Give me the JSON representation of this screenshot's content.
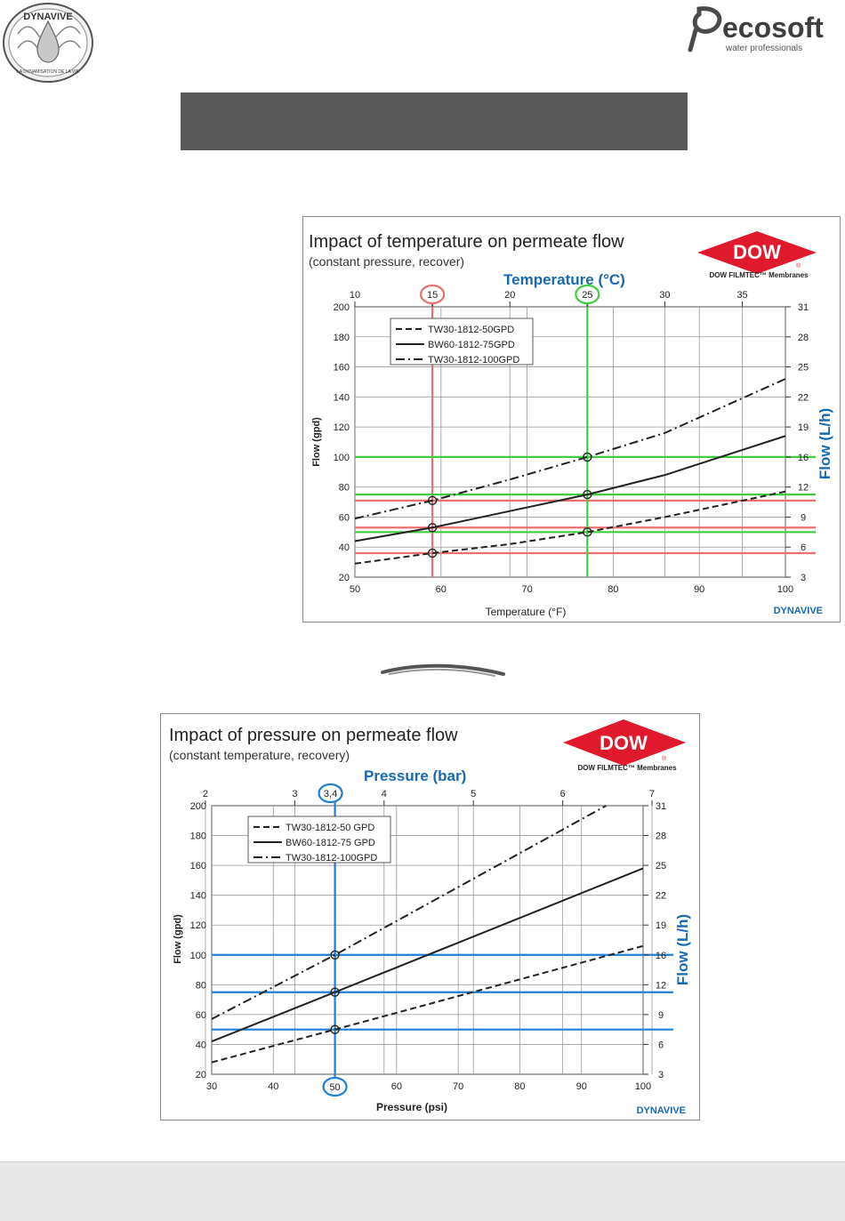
{
  "header": {
    "left_logo": {
      "top_text": "DYNAVIVE",
      "bottom_text": "LA DYNAMISATION DE LA VIE"
    },
    "right_logo": {
      "name": "ecosoft",
      "tagline": "water professionals",
      "icon": "leaf-e-icon"
    }
  },
  "colors": {
    "red_guides": "#e9706f",
    "green_guides": "#3fce3f",
    "blue_guides": "#1f7fd6",
    "blue_text": "#1769b3",
    "dow_red": "#e0192d",
    "banner": "#595959",
    "footer": "#e8e8e8"
  },
  "chart_data": [
    {
      "type": "line",
      "title": "Impact of temperature on permeate flow",
      "subtitle": "(constant pressure, recover)",
      "brand": {
        "name": "DOW",
        "sub": "DOW FILMTEC™ Membranes",
        "reg": "®"
      },
      "watermark": "DYNAVIVE",
      "top_axis": {
        "label": "Temperature (°C)",
        "ticks": [
          "10",
          "15",
          "20",
          "25",
          "30",
          "35"
        ],
        "range": [
          10,
          37.78
        ]
      },
      "xlabel": "Temperature (°F)",
      "xlim": [
        50,
        100
      ],
      "xticks": [
        "50",
        "60",
        "70",
        "80",
        "90",
        "100"
      ],
      "ylabel": "Flow (gpd)",
      "ylim": [
        20,
        200
      ],
      "yticks": [
        "20",
        "40",
        "60",
        "80",
        "100",
        "120",
        "140",
        "160",
        "180",
        "200"
      ],
      "right_axis": {
        "label": "Flow (L/h)",
        "ticks": [
          "3",
          "6",
          "9",
          "12",
          "16",
          "19",
          "22",
          "25",
          "28",
          "31"
        ]
      },
      "grid": true,
      "legend_position": "top-left",
      "series": [
        {
          "name": "TW30-1812-50GPD",
          "dash": "dashed",
          "x": [
            50,
            59,
            68,
            77,
            86,
            100
          ],
          "values": [
            29,
            36,
            42,
            50,
            60,
            77
          ]
        },
        {
          "name": "BW60-1812-75GPD",
          "dash": "solid",
          "x": [
            50,
            59,
            68,
            77,
            86,
            100
          ],
          "values": [
            44,
            53,
            64,
            75,
            88,
            114
          ]
        },
        {
          "name": "TW30-1812-100GPD",
          "dash": "dashdot",
          "x": [
            50,
            59,
            68,
            77,
            86,
            100
          ],
          "values": [
            59,
            71,
            85,
            100,
            116,
            152
          ]
        }
      ],
      "markers": [
        {
          "x": 59,
          "y": 71
        },
        {
          "x": 59,
          "y": 53
        },
        {
          "x": 59,
          "y": 36
        },
        {
          "x": 77,
          "y": 100
        },
        {
          "x": 77,
          "y": 75
        },
        {
          "x": 77,
          "y": 50
        }
      ],
      "highlight_ticks": [
        {
          "label": "15",
          "color": "red"
        },
        {
          "label": "25",
          "color": "green"
        }
      ]
    },
    {
      "type": "line",
      "title": "Impact of pressure on permeate flow",
      "subtitle": "(constant temperature, recovery)",
      "brand": {
        "name": "DOW",
        "sub": "DOW FILMTEC™ Membranes",
        "reg": "®"
      },
      "watermark": "DYNAVIVE",
      "top_axis": {
        "label": "Pressure (bar)",
        "ticks": [
          "2",
          "3",
          "4",
          "5",
          "6",
          "7"
        ],
        "range": [
          2.07,
          6.9
        ]
      },
      "xlabel": "Pressure (psi)",
      "xlim": [
        30,
        100
      ],
      "xticks": [
        "30",
        "40",
        "50",
        "60",
        "70",
        "80",
        "90",
        "100"
      ],
      "ylabel": "Flow (gpd)",
      "ylim": [
        20,
        200
      ],
      "yticks": [
        "20",
        "40",
        "60",
        "80",
        "100",
        "120",
        "140",
        "160",
        "180",
        "200"
      ],
      "right_axis": {
        "label": "Flow (L/h)",
        "ticks": [
          "3",
          "6",
          "9",
          "12",
          "16",
          "19",
          "22",
          "25",
          "28",
          "31"
        ]
      },
      "grid": true,
      "legend_position": "top-left",
      "series": [
        {
          "name": "TW30-1812-50 GPD",
          "dash": "dashed",
          "x": [
            30,
            50,
            100
          ],
          "values": [
            28,
            50,
            106
          ]
        },
        {
          "name": "BW60-1812-75 GPD",
          "dash": "solid",
          "x": [
            30,
            50,
            100
          ],
          "values": [
            42,
            75,
            158
          ]
        },
        {
          "name": "TW30-1812-100GPD",
          "dash": "dashdot",
          "x": [
            30,
            50,
            94
          ],
          "values": [
            57,
            100,
            200
          ]
        }
      ],
      "markers": [
        {
          "x": 50,
          "y": 100
        },
        {
          "x": 50,
          "y": 75
        },
        {
          "x": 50,
          "y": 50
        }
      ],
      "highlight_ticks": [
        {
          "label": "3,4",
          "color": "blue"
        },
        {
          "label": "50",
          "color": "blue"
        }
      ]
    }
  ]
}
